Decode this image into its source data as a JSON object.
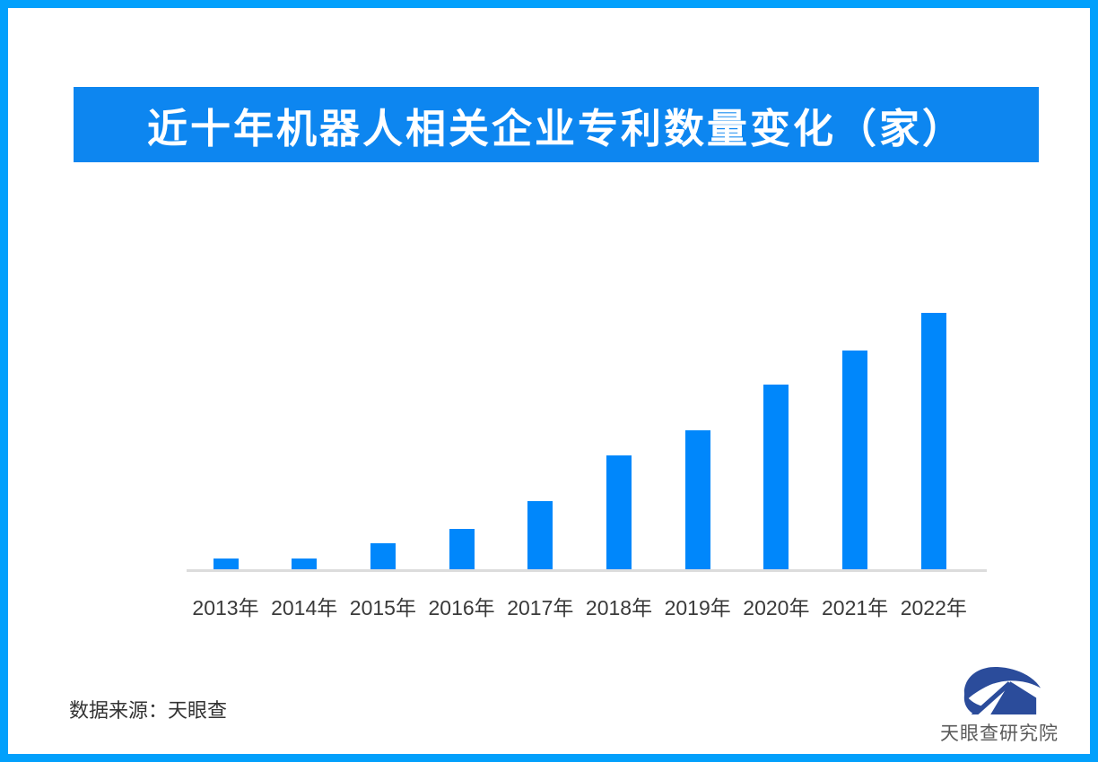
{
  "frame": {
    "border_color": "#02A0FC",
    "background": "#FFFFFF"
  },
  "header": {
    "title": "近十年机器人相关企业专利数量变化（家）",
    "background": "#0D86F0",
    "text_color": "#FFFFFF"
  },
  "chart_data": {
    "type": "bar",
    "title": "近十年机器人相关企业专利数量变化（家）",
    "categories": [
      "2013年",
      "2014年",
      "2015年",
      "2016年",
      "2017年",
      "2018年",
      "2019年",
      "2020年",
      "2021年",
      "2022年"
    ],
    "values_pct_of_max": [
      4.2,
      4.3,
      10.1,
      15.7,
      26.6,
      44.4,
      54.2,
      72.0,
      85.3,
      100
    ],
    "value_axis_note": "no numeric axis or data labels shown; values estimated as percent of tallest bar (2022)",
    "bar_color": "#0087FB",
    "baseline_color": "#DCDCDC",
    "xlabel": "",
    "ylabel": "",
    "grid": false,
    "legend": false
  },
  "footer": {
    "source_label": "数据来源：天眼查",
    "brand_name": "天眼查研究院",
    "brand_logo_color": "#2B4C9B",
    "brand_text_color": "#5A5A5A"
  }
}
